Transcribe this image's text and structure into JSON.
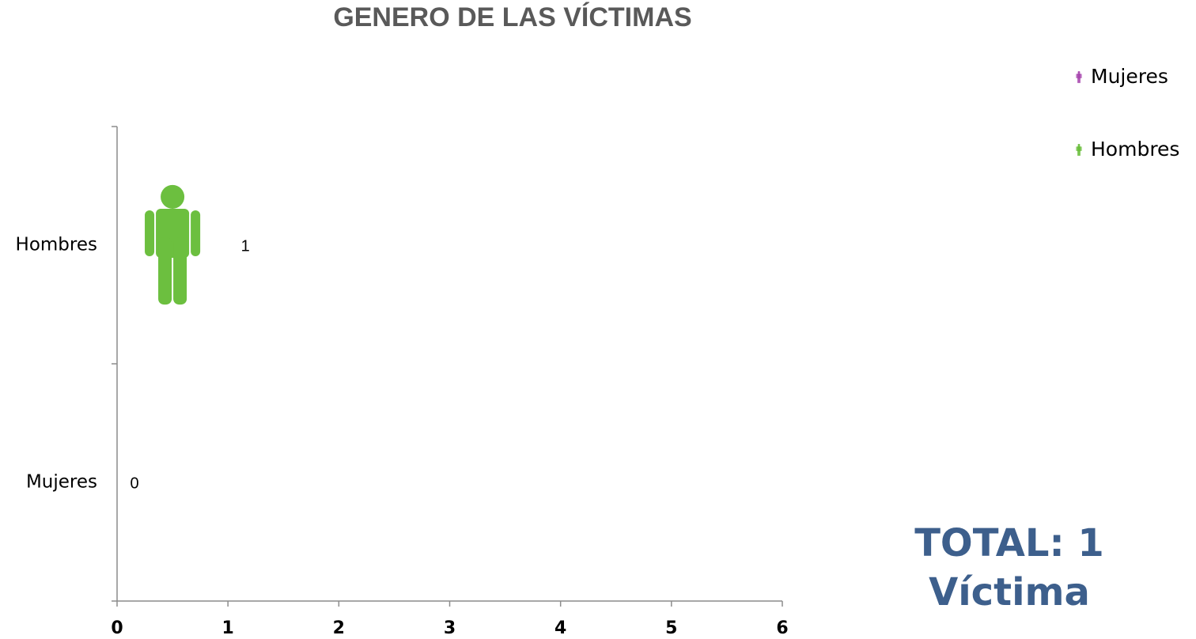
{
  "chart_data": {
    "type": "pictograph-bar",
    "title": "GENERO DE LAS VÍCTIMAS",
    "categories": [
      "Hombres",
      "Mujeres"
    ],
    "values": [
      1,
      0
    ],
    "colors": [
      "#6cbf3f",
      "#a94bb0"
    ],
    "xlim": [
      0,
      6
    ],
    "xticks": [
      0,
      1,
      2,
      3,
      4,
      5,
      6
    ],
    "legend": {
      "position": "top-right",
      "entries": [
        {
          "name": "Mujeres",
          "color": "#a94bb0"
        },
        {
          "name": "Hombres",
          "color": "#6cbf3f"
        }
      ]
    },
    "annotations": [
      "TOTAL: 1",
      "Víctima"
    ],
    "annotation_color": "#3d5f8c"
  }
}
